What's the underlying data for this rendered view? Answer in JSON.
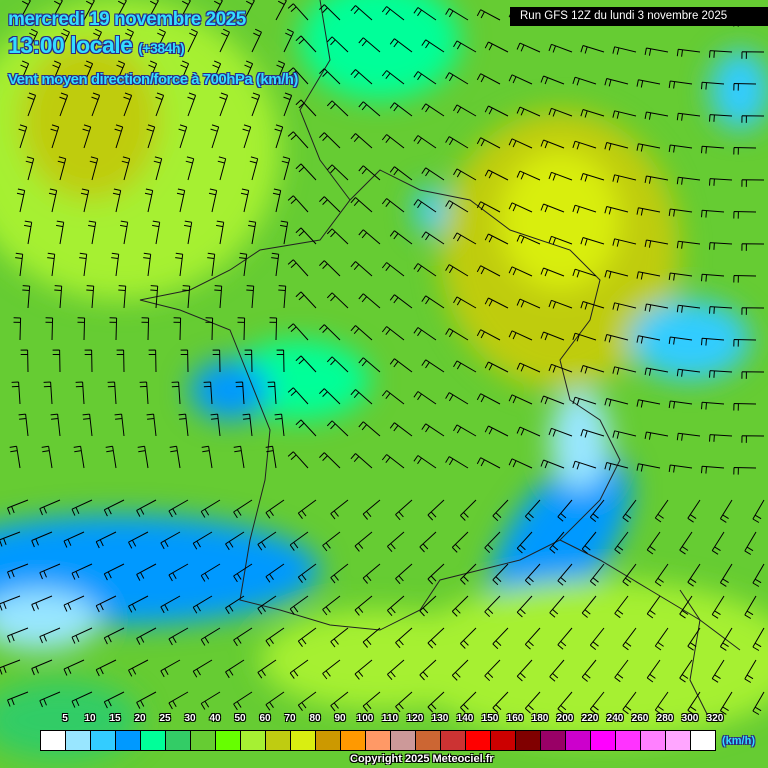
{
  "header": {
    "date": "mercredi 19 novembre 2025",
    "time": "13:00 locale",
    "lead": "(+384h)",
    "parameter": "Vent moyen direction/force à 700hPa (km/h)",
    "run": "Run GFS 12Z du lundi 3 novembre 2025"
  },
  "legend": {
    "unit": "(km/h)",
    "labels": [
      "5",
      "10",
      "15",
      "20",
      "25",
      "30",
      "40",
      "50",
      "60",
      "70",
      "80",
      "90",
      "100",
      "110",
      "120",
      "130",
      "140",
      "150",
      "160",
      "180",
      "200",
      "220",
      "240",
      "260",
      "280",
      "300",
      "320"
    ],
    "colors": [
      "#ffffff",
      "#99e6ff",
      "#33ccff",
      "#0099ff",
      "#00ff99",
      "#33cc66",
      "#66cc33",
      "#66ff00",
      "#a6f033",
      "#bfcc11",
      "#d9ee11",
      "#cc9900",
      "#ff9900",
      "#ff9966",
      "#cc9999",
      "#cc6633",
      "#cc3333",
      "#ff0000",
      "#cc0000",
      "#800000",
      "#990066",
      "#cc00cc",
      "#ff00ff",
      "#ff33ff",
      "#ff80ff",
      "#ffa6ff",
      "#ffffff"
    ]
  },
  "footer": {
    "copyright": "Copyright 2025 Meteociel.fr"
  }
}
